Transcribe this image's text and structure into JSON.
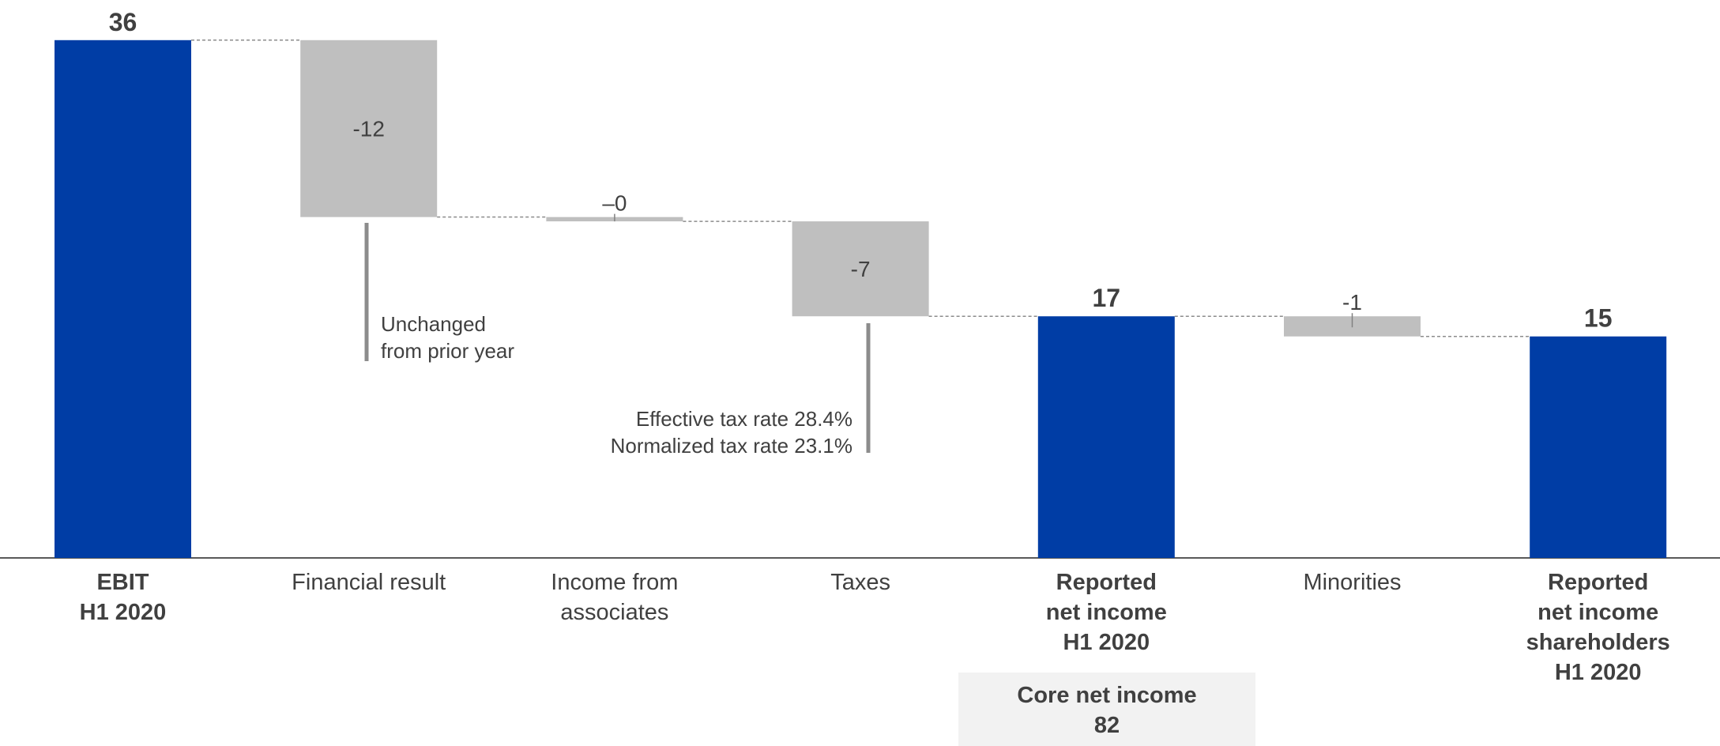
{
  "chart_data": {
    "type": "waterfall",
    "title": "",
    "xlabel": "",
    "ylabel": "",
    "ylim": [
      0,
      36
    ],
    "grid": false,
    "legend": "none",
    "colors": {
      "total": "#003da5",
      "delta": "#bfbfbf",
      "connector": "#8c8c8c",
      "text": "#404040"
    },
    "bars": [
      {
        "kind": "total",
        "label_lines": [
          "EBIT",
          "H1 2020"
        ],
        "bold": true,
        "value": 36,
        "start": 0,
        "end": 36,
        "value_label": "36"
      },
      {
        "kind": "delta",
        "label_lines": [
          "Financial result"
        ],
        "bold": false,
        "value": -12.3,
        "start": 36,
        "end": 23.7,
        "value_label": "-12"
      },
      {
        "kind": "delta",
        "label_lines": [
          "Income from",
          "associates"
        ],
        "bold": false,
        "value": -0.3,
        "start": 23.7,
        "end": 23.4,
        "value_label": "–0"
      },
      {
        "kind": "delta",
        "label_lines": [
          "Taxes"
        ],
        "bold": false,
        "value": -6.6,
        "start": 23.4,
        "end": 16.8,
        "value_label": "-7"
      },
      {
        "kind": "total",
        "label_lines": [
          "Reported",
          "net income",
          "H1 2020"
        ],
        "bold": true,
        "value": 16.8,
        "start": 0,
        "end": 16.8,
        "value_label": "17"
      },
      {
        "kind": "delta",
        "label_lines": [
          "Minorities"
        ],
        "bold": false,
        "value": -1.4,
        "start": 16.8,
        "end": 15.4,
        "value_label": "-1"
      },
      {
        "kind": "total",
        "label_lines": [
          "Reported",
          "net income",
          "shareholders",
          "H1 2020"
        ],
        "bold": true,
        "value": 15.4,
        "start": 0,
        "end": 15.4,
        "value_label": "15"
      }
    ],
    "annotations": [
      {
        "bar_index": 1,
        "lines": [
          "Unchanged",
          "from prior year"
        ]
      },
      {
        "bar_index": 3,
        "lines": [
          "Effective tax rate 28.4%",
          "Normalized tax rate 23.1%"
        ]
      }
    ],
    "callout": {
      "bar_index": 4,
      "lines": [
        "Core net income",
        "82"
      ]
    }
  }
}
